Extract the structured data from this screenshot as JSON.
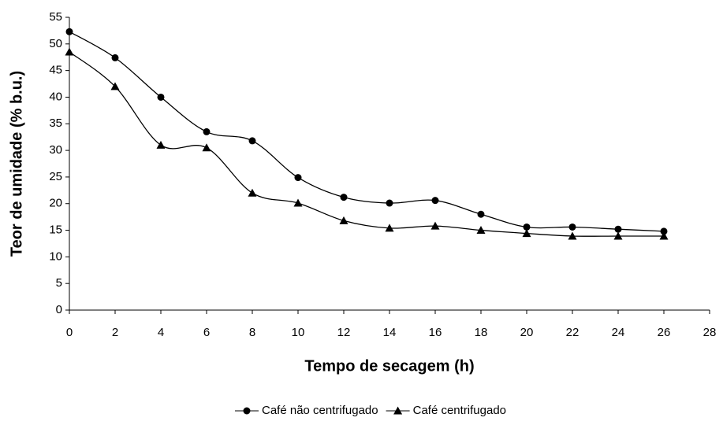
{
  "chart_data": {
    "type": "line",
    "xlabel": "Tempo de secagem (h)",
    "ylabel": "Teor de umidade (% b.u.)",
    "x": [
      0,
      2,
      4,
      6,
      8,
      10,
      12,
      14,
      16,
      18,
      20,
      22,
      24,
      26
    ],
    "series": [
      {
        "name": "Café não centrifugado",
        "color": "#000000",
        "marker": "circle",
        "values": [
          52.3,
          47.4,
          40,
          33.5,
          31.8,
          24.9,
          21.2,
          20.1,
          20.6,
          18,
          15.6,
          15.6,
          15.2,
          14.8
        ]
      },
      {
        "name": "Café centrifugado",
        "color": "#000000",
        "marker": "triangle",
        "values": [
          48.5,
          42,
          31,
          30.5,
          22,
          20.1,
          16.8,
          15.4,
          15.8,
          15,
          14.4,
          13.9,
          13.9,
          13.9
        ]
      }
    ],
    "xlim": [
      0,
      28
    ],
    "xticks": [
      0,
      2,
      4,
      6,
      8,
      10,
      12,
      14,
      16,
      18,
      20,
      22,
      24,
      26,
      28
    ],
    "ylim": [
      0,
      55
    ],
    "yticks": [
      0,
      5,
      10,
      15,
      20,
      25,
      30,
      35,
      40,
      45,
      50,
      55
    ],
    "grid": false,
    "legend": "bottom"
  }
}
